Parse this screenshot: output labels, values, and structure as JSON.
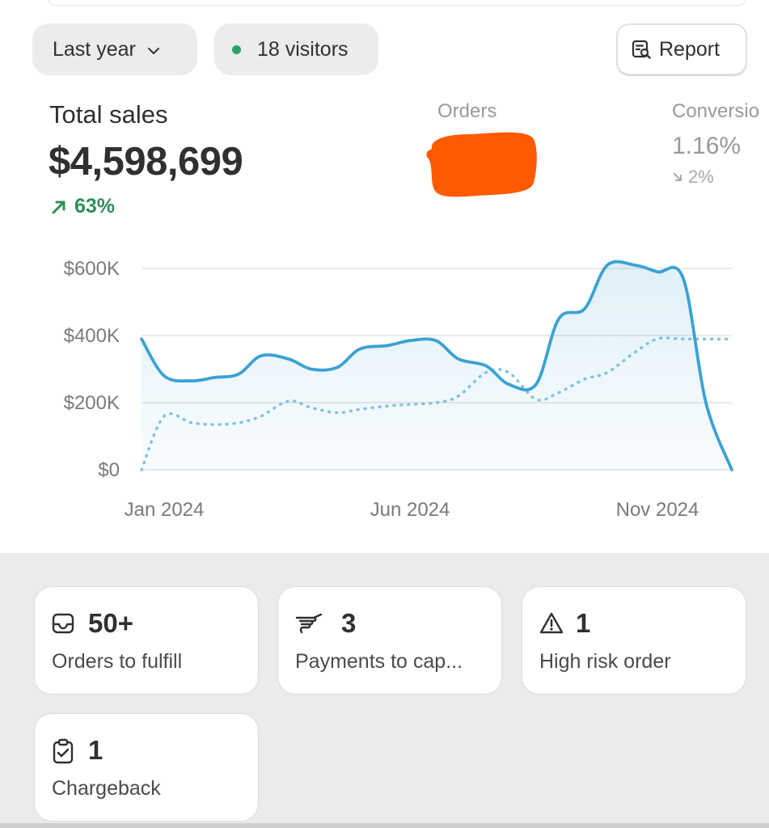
{
  "toolbar": {
    "date_range": "Last year",
    "visitors": "18 visitors",
    "visitors_dot_color": "#29a36a",
    "report_label": "Report"
  },
  "metrics": {
    "total_sales": {
      "label": "Total sales",
      "value": "$4,598,699",
      "delta": "63%",
      "delta_direction": "up",
      "delta_color": "#2e8f57"
    },
    "orders": {
      "label": "Orders",
      "value_redacted": true,
      "redaction_color": "#ff5a00"
    },
    "conversion": {
      "label": "Conversio",
      "value": "1.16%",
      "delta": "2%",
      "delta_direction": "down"
    }
  },
  "chart_data": {
    "type": "line",
    "title": "",
    "xlabel": "",
    "ylabel": "",
    "x_ticks": [
      "Jan 2024",
      "Jun 2024",
      "Nov 2024"
    ],
    "y_ticks": [
      "$600K",
      "$400K",
      "$200K",
      "$0"
    ],
    "y_tick_values": [
      600000,
      400000,
      200000,
      0
    ],
    "ylim": [
      0,
      600000
    ],
    "grid": true,
    "legend": "none",
    "colors": {
      "current": "#3ba2d3",
      "comparison": "#7ec3e3"
    },
    "series": [
      {
        "style": "solid",
        "x": [
          "2024-01-01",
          "2024-01-15",
          "2024-02-01",
          "2024-02-15",
          "2024-03-01",
          "2024-03-15",
          "2024-04-01",
          "2024-04-15",
          "2024-05-01",
          "2024-05-15",
          "2024-06-01",
          "2024-06-15",
          "2024-07-01",
          "2024-07-15",
          "2024-08-01",
          "2024-08-15",
          "2024-09-01",
          "2024-09-15",
          "2024-10-01",
          "2024-10-15",
          "2024-11-01",
          "2024-11-15",
          "2024-12-01",
          "2024-12-15",
          "2024-12-31"
        ],
        "values": [
          390000,
          280000,
          265000,
          275000,
          285000,
          340000,
          330000,
          300000,
          305000,
          360000,
          370000,
          385000,
          385000,
          330000,
          310000,
          255000,
          255000,
          450000,
          480000,
          610000,
          610000,
          590000,
          570000,
          200000,
          0
        ]
      },
      {
        "style": "dotted",
        "x": [
          "2024-01-01",
          "2024-01-15",
          "2024-02-01",
          "2024-02-15",
          "2024-03-01",
          "2024-03-15",
          "2024-04-01",
          "2024-04-15",
          "2024-05-01",
          "2024-05-15",
          "2024-06-01",
          "2024-06-15",
          "2024-07-01",
          "2024-07-15",
          "2024-08-01",
          "2024-08-15",
          "2024-09-01",
          "2024-09-15",
          "2024-10-01",
          "2024-10-15",
          "2024-11-01",
          "2024-11-15",
          "2024-12-01",
          "2024-12-15",
          "2024-12-31"
        ],
        "values": [
          0,
          160000,
          140000,
          135000,
          140000,
          160000,
          205000,
          185000,
          170000,
          180000,
          190000,
          195000,
          200000,
          220000,
          290000,
          290000,
          210000,
          230000,
          270000,
          290000,
          350000,
          390000,
          390000,
          390000,
          390000
        ]
      }
    ]
  },
  "cards": [
    {
      "icon": "inbox-icon",
      "value": "50+",
      "label": "Orders to fulfill"
    },
    {
      "icon": "hand-payment-icon",
      "value": "3",
      "label": "Payments to cap..."
    },
    {
      "icon": "warning-icon",
      "value": "1",
      "label": "High risk order"
    },
    {
      "icon": "clipboard-check-icon",
      "value": "1",
      "label": "Chargeback"
    }
  ]
}
